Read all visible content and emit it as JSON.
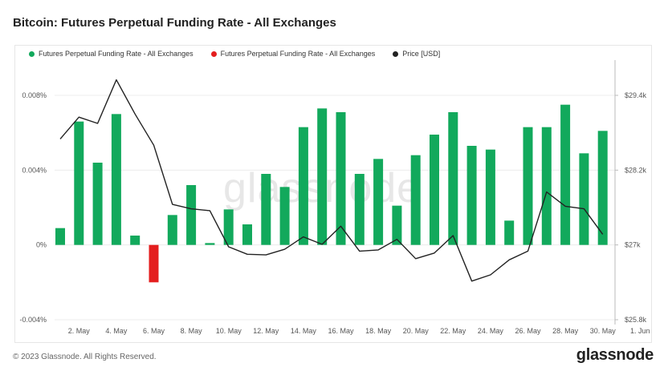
{
  "title": "Bitcoin: Futures Perpetual Funding Rate - All Exchanges",
  "legend": [
    {
      "label": "Futures Perpetual Funding Rate - All Exchanges",
      "color": "#12a95c"
    },
    {
      "label": "Futures Perpetual Funding Rate - All Exchanges",
      "color": "#e41e1e"
    },
    {
      "label": "Price [USD]",
      "color": "#222222"
    }
  ],
  "footer": "© 2023 Glassnode. All Rights Reserved.",
  "brand": "glassnode",
  "watermark": "glassnode",
  "colors": {
    "positive": "#12a95c",
    "negative": "#e41e1e",
    "price": "#222222",
    "grid": "#ececec"
  },
  "chart_data": {
    "type": "bar",
    "x_tick_labels": [
      "2. May",
      "4. May",
      "6. May",
      "8. May",
      "10. May",
      "12. May",
      "14. May",
      "16. May",
      "18. May",
      "20. May",
      "22. May",
      "24. May",
      "26. May",
      "28. May",
      "30. May",
      "1. Jun"
    ],
    "dates": [
      "2023-05-01",
      "2023-05-02",
      "2023-05-03",
      "2023-05-04",
      "2023-05-05",
      "2023-05-06",
      "2023-05-07",
      "2023-05-08",
      "2023-05-09",
      "2023-05-10",
      "2023-05-11",
      "2023-05-12",
      "2023-05-13",
      "2023-05-14",
      "2023-05-15",
      "2023-05-16",
      "2023-05-17",
      "2023-05-18",
      "2023-05-19",
      "2023-05-20",
      "2023-05-21",
      "2023-05-22",
      "2023-05-23",
      "2023-05-24",
      "2023-05-25",
      "2023-05-26",
      "2023-05-27",
      "2023-05-28",
      "2023-05-29",
      "2023-05-30",
      "2023-05-31"
    ],
    "series": [
      {
        "name": "Futures Perpetual Funding Rate - All Exchanges",
        "axis": "left",
        "values": [
          0.0009,
          0.0066,
          0.0044,
          0.007,
          0.0005,
          -0.002,
          0.0016,
          0.0032,
          0.0001,
          0.0019,
          0.0011,
          0.0038,
          0.0031,
          0.0063,
          0.0073,
          0.0071,
          0.0038,
          0.0046,
          0.0021,
          0.0048,
          0.0059,
          0.0071,
          0.0053,
          0.0051,
          0.0013,
          0.0063,
          0.0063,
          0.0075,
          0.0049,
          0.0061,
          null
        ]
      },
      {
        "name": "Price [USD]",
        "axis": "right",
        "type": "line",
        "values": [
          28700,
          29050,
          28950,
          29650,
          29100,
          28600,
          27650,
          27580,
          27550,
          26970,
          26850,
          26840,
          26930,
          27130,
          27010,
          27300,
          26900,
          26920,
          27090,
          26780,
          26870,
          27150,
          26420,
          26520,
          26760,
          26900,
          27850,
          27620,
          27580,
          27170,
          null
        ]
      }
    ],
    "y_left": {
      "ticks": [
        "-0.004%",
        "0%",
        "0.004%",
        "0.008%"
      ],
      "range": [
        -0.004,
        0.008
      ]
    },
    "y_right": {
      "ticks": [
        "$25.8k",
        "$27k",
        "$28.2k",
        "$29.4k"
      ],
      "range": [
        25800,
        29400
      ]
    },
    "grid": true,
    "legend_position": "top-left"
  }
}
